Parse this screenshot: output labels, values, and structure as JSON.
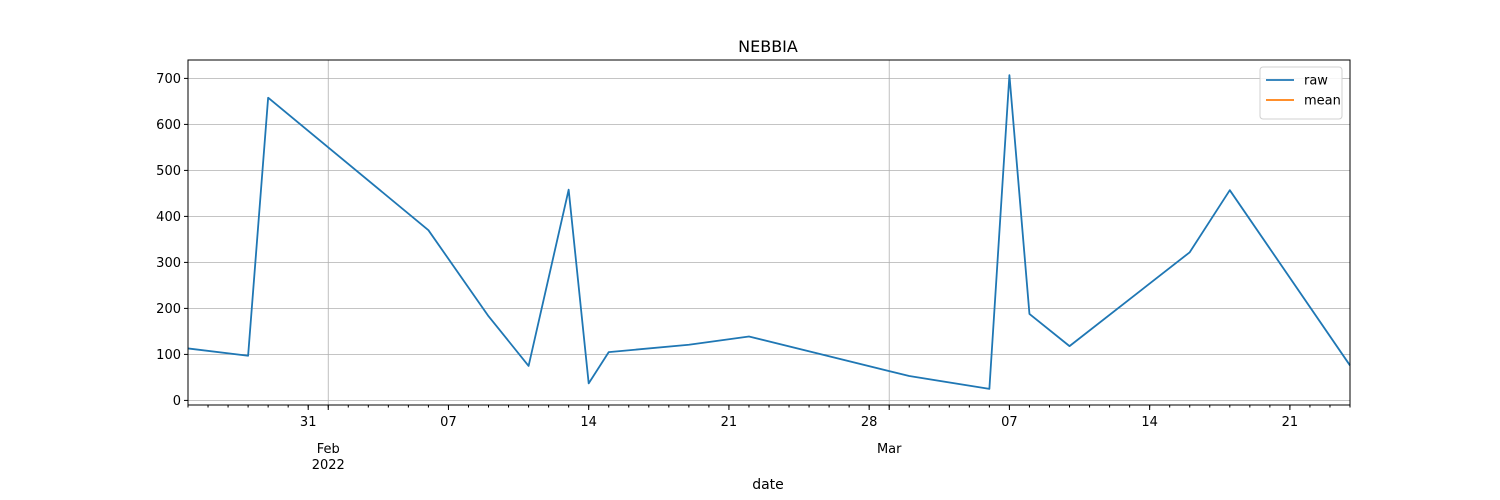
{
  "chart_data": {
    "type": "line",
    "title": "NEBBIA",
    "xlabel": "date",
    "ylabel": "",
    "ylim": [
      -10,
      740
    ],
    "xlim": [
      "2022-01-25",
      "2022-03-24"
    ],
    "grid": true,
    "legend_placement": "top-right",
    "y_ticks": [
      0,
      100,
      200,
      300,
      400,
      500,
      600,
      700
    ],
    "x_major_ticks": [
      {
        "date": "2022-01-31",
        "label": "31"
      },
      {
        "date": "2022-02-01",
        "label": "Feb",
        "sublabel": "2022"
      },
      {
        "date": "2022-02-07",
        "label": "07"
      },
      {
        "date": "2022-02-14",
        "label": "14"
      },
      {
        "date": "2022-02-21",
        "label": "21"
      },
      {
        "date": "2022-02-28",
        "label": "28"
      },
      {
        "date": "2022-03-01",
        "label": "Mar"
      },
      {
        "date": "2022-03-07",
        "label": "07"
      },
      {
        "date": "2022-03-14",
        "label": "14"
      },
      {
        "date": "2022-03-21",
        "label": "21"
      }
    ],
    "x_grid_dates": [
      "2022-02-01",
      "2022-03-01"
    ],
    "series": [
      {
        "name": "raw",
        "color": "#1f77b4",
        "points": [
          {
            "x": "2022-01-25",
            "y": 113
          },
          {
            "x": "2022-01-28",
            "y": 97
          },
          {
            "x": "2022-01-29",
            "y": 658
          },
          {
            "x": "2022-02-06",
            "y": 370
          },
          {
            "x": "2022-02-09",
            "y": 183
          },
          {
            "x": "2022-02-11",
            "y": 75
          },
          {
            "x": "2022-02-13",
            "y": 458
          },
          {
            "x": "2022-02-14",
            "y": 37
          },
          {
            "x": "2022-02-15",
            "y": 105
          },
          {
            "x": "2022-02-19",
            "y": 121
          },
          {
            "x": "2022-02-22",
            "y": 139
          },
          {
            "x": "2022-03-02",
            "y": 53
          },
          {
            "x": "2022-03-06",
            "y": 25
          },
          {
            "x": "2022-03-07",
            "y": 707
          },
          {
            "x": "2022-03-08",
            "y": 188
          },
          {
            "x": "2022-03-10",
            "y": 118
          },
          {
            "x": "2022-03-16",
            "y": 322
          },
          {
            "x": "2022-03-18",
            "y": 457
          },
          {
            "x": "2022-03-24",
            "y": 76
          }
        ]
      },
      {
        "name": "mean",
        "color": "#ff7f0e",
        "points": []
      }
    ]
  }
}
